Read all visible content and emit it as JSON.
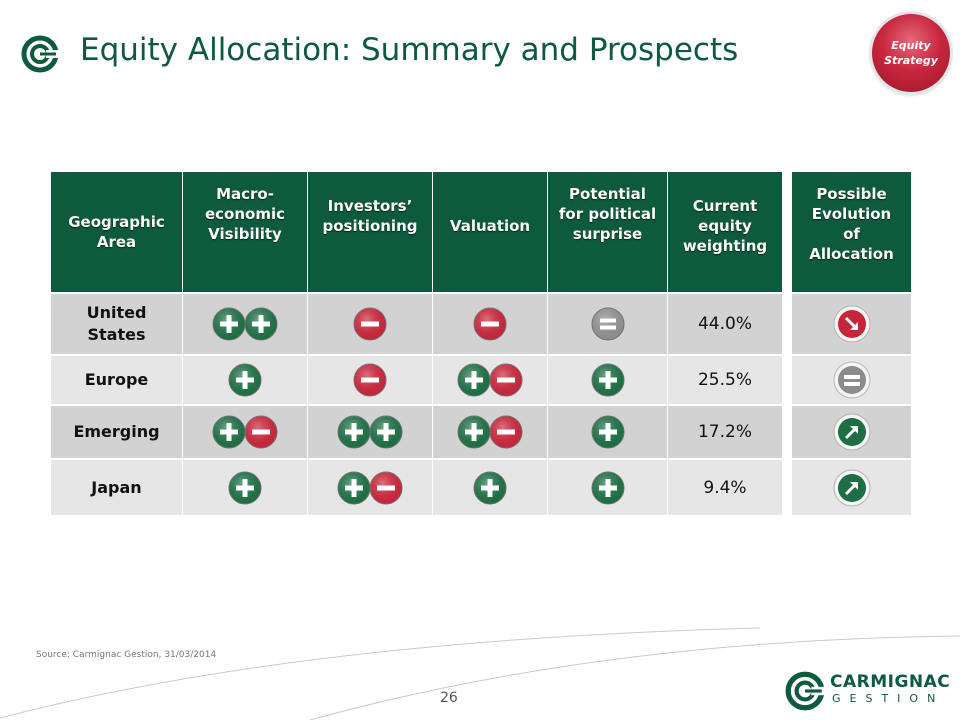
{
  "header": {
    "title": "Equity Allocation: Summary and Prospects",
    "badge_line1": "Equity",
    "badge_line2": "Strategy"
  },
  "table": {
    "columns": [
      "Geographic\nArea",
      "Macro-\neconomic\nVisibility",
      "Investors’\npositioning",
      "Valuation",
      "Potential\nfor political\nsurprise",
      "Current\nequity\nweighting"
    ],
    "evolution_header": "Possible\nEvolution\nof\nAllocation",
    "rows": [
      {
        "area": "United\nStates",
        "macro": [
          "plus",
          "plus"
        ],
        "positioning": [
          "minus"
        ],
        "valuation": [
          "minus"
        ],
        "political": [
          "equal"
        ],
        "weighting": "44.0%",
        "evolution": "arrow-down-right"
      },
      {
        "area": "Europe",
        "macro": [
          "plus"
        ],
        "positioning": [
          "minus"
        ],
        "valuation": [
          "plus",
          "minus"
        ],
        "political": [
          "plus"
        ],
        "weighting": "25.5%",
        "evolution": "equal"
      },
      {
        "area": "Emerging",
        "macro": [
          "plus",
          "minus"
        ],
        "positioning": [
          "plus",
          "plus"
        ],
        "valuation": [
          "plus",
          "minus"
        ],
        "political": [
          "plus"
        ],
        "weighting": "17.2%",
        "evolution": "arrow-up-right"
      },
      {
        "area": "Japan",
        "macro": [
          "plus"
        ],
        "positioning": [
          "plus",
          "minus"
        ],
        "valuation": [
          "plus"
        ],
        "political": [
          "plus"
        ],
        "weighting": "9.4%",
        "evolution": "arrow-up-right"
      }
    ]
  },
  "colors": {
    "brand_green": "#0d5a3c",
    "symbol_green": "#1e6e44",
    "symbol_red": "#c4263a",
    "symbol_grey": "#8c8c8c",
    "row_dark": "#d2d2d2",
    "row_light": "#e6e6e6"
  },
  "footer": {
    "source": "Source: Carmignac Gestion, 31/03/2014",
    "page_number": "26",
    "brand_name": "CARMIGNAC",
    "brand_sub": "GESTION"
  }
}
